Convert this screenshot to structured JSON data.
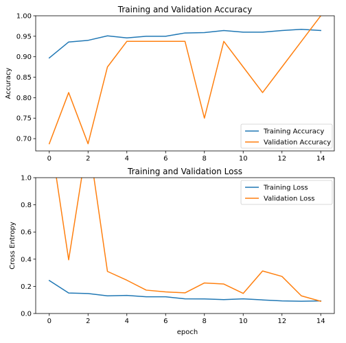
{
  "chart_data": [
    {
      "type": "line",
      "title": "Training and Validation Accuracy",
      "xlabel": "",
      "ylabel": "Accuracy",
      "xlim": [
        -0.7,
        14.7
      ],
      "ylim": [
        0.67,
        1.0
      ],
      "xticks": [
        0,
        2,
        4,
        6,
        8,
        10,
        12,
        14
      ],
      "yticks": [
        0.7,
        0.75,
        0.8,
        0.85,
        0.9,
        0.95,
        1.0
      ],
      "ytick_decimals": 2,
      "legend_position": "lower-right",
      "x": [
        0,
        1,
        2,
        3,
        4,
        5,
        6,
        7,
        8,
        9,
        10,
        11,
        12,
        13,
        14
      ],
      "series": [
        {
          "name": "Training Accuracy",
          "color": "#1f77b4",
          "values": [
            0.897,
            0.936,
            0.94,
            0.951,
            0.946,
            0.95,
            0.95,
            0.958,
            0.959,
            0.964,
            0.96,
            0.96,
            0.964,
            0.967,
            0.964
          ]
        },
        {
          "name": "Validation Accuracy",
          "color": "#ff7f0e",
          "values": [
            0.6875,
            0.8125,
            0.6875,
            0.875,
            0.9375,
            0.9375,
            0.9375,
            0.9375,
            0.75,
            0.9375,
            0.875,
            0.8125,
            0.875,
            0.9375,
            1.0
          ]
        }
      ]
    },
    {
      "type": "line",
      "title": "Training and Validation Loss",
      "xlabel": "epoch",
      "ylabel": "Cross Entropy",
      "xlim": [
        -0.7,
        14.7
      ],
      "ylim": [
        0.0,
        1.0
      ],
      "xticks": [
        0,
        2,
        4,
        6,
        8,
        10,
        12,
        14
      ],
      "yticks": [
        0.0,
        0.2,
        0.4,
        0.6,
        0.8,
        1.0
      ],
      "ytick_decimals": 1,
      "legend_position": "upper-right",
      "x": [
        0,
        1,
        2,
        3,
        4,
        5,
        6,
        7,
        8,
        9,
        10,
        11,
        12,
        13,
        14
      ],
      "series": [
        {
          "name": "Training Loss",
          "color": "#1f77b4",
          "values": [
            0.243,
            0.151,
            0.147,
            0.13,
            0.133,
            0.123,
            0.123,
            0.108,
            0.107,
            0.102,
            0.108,
            0.1,
            0.093,
            0.09,
            0.093
          ]
        },
        {
          "name": "Validation Loss",
          "color": "#ff7f0e",
          "values": [
            1.35,
            0.395,
            1.3,
            0.31,
            0.245,
            0.172,
            0.159,
            0.152,
            0.225,
            0.217,
            0.148,
            0.313,
            0.273,
            0.13,
            0.09
          ]
        }
      ]
    }
  ]
}
